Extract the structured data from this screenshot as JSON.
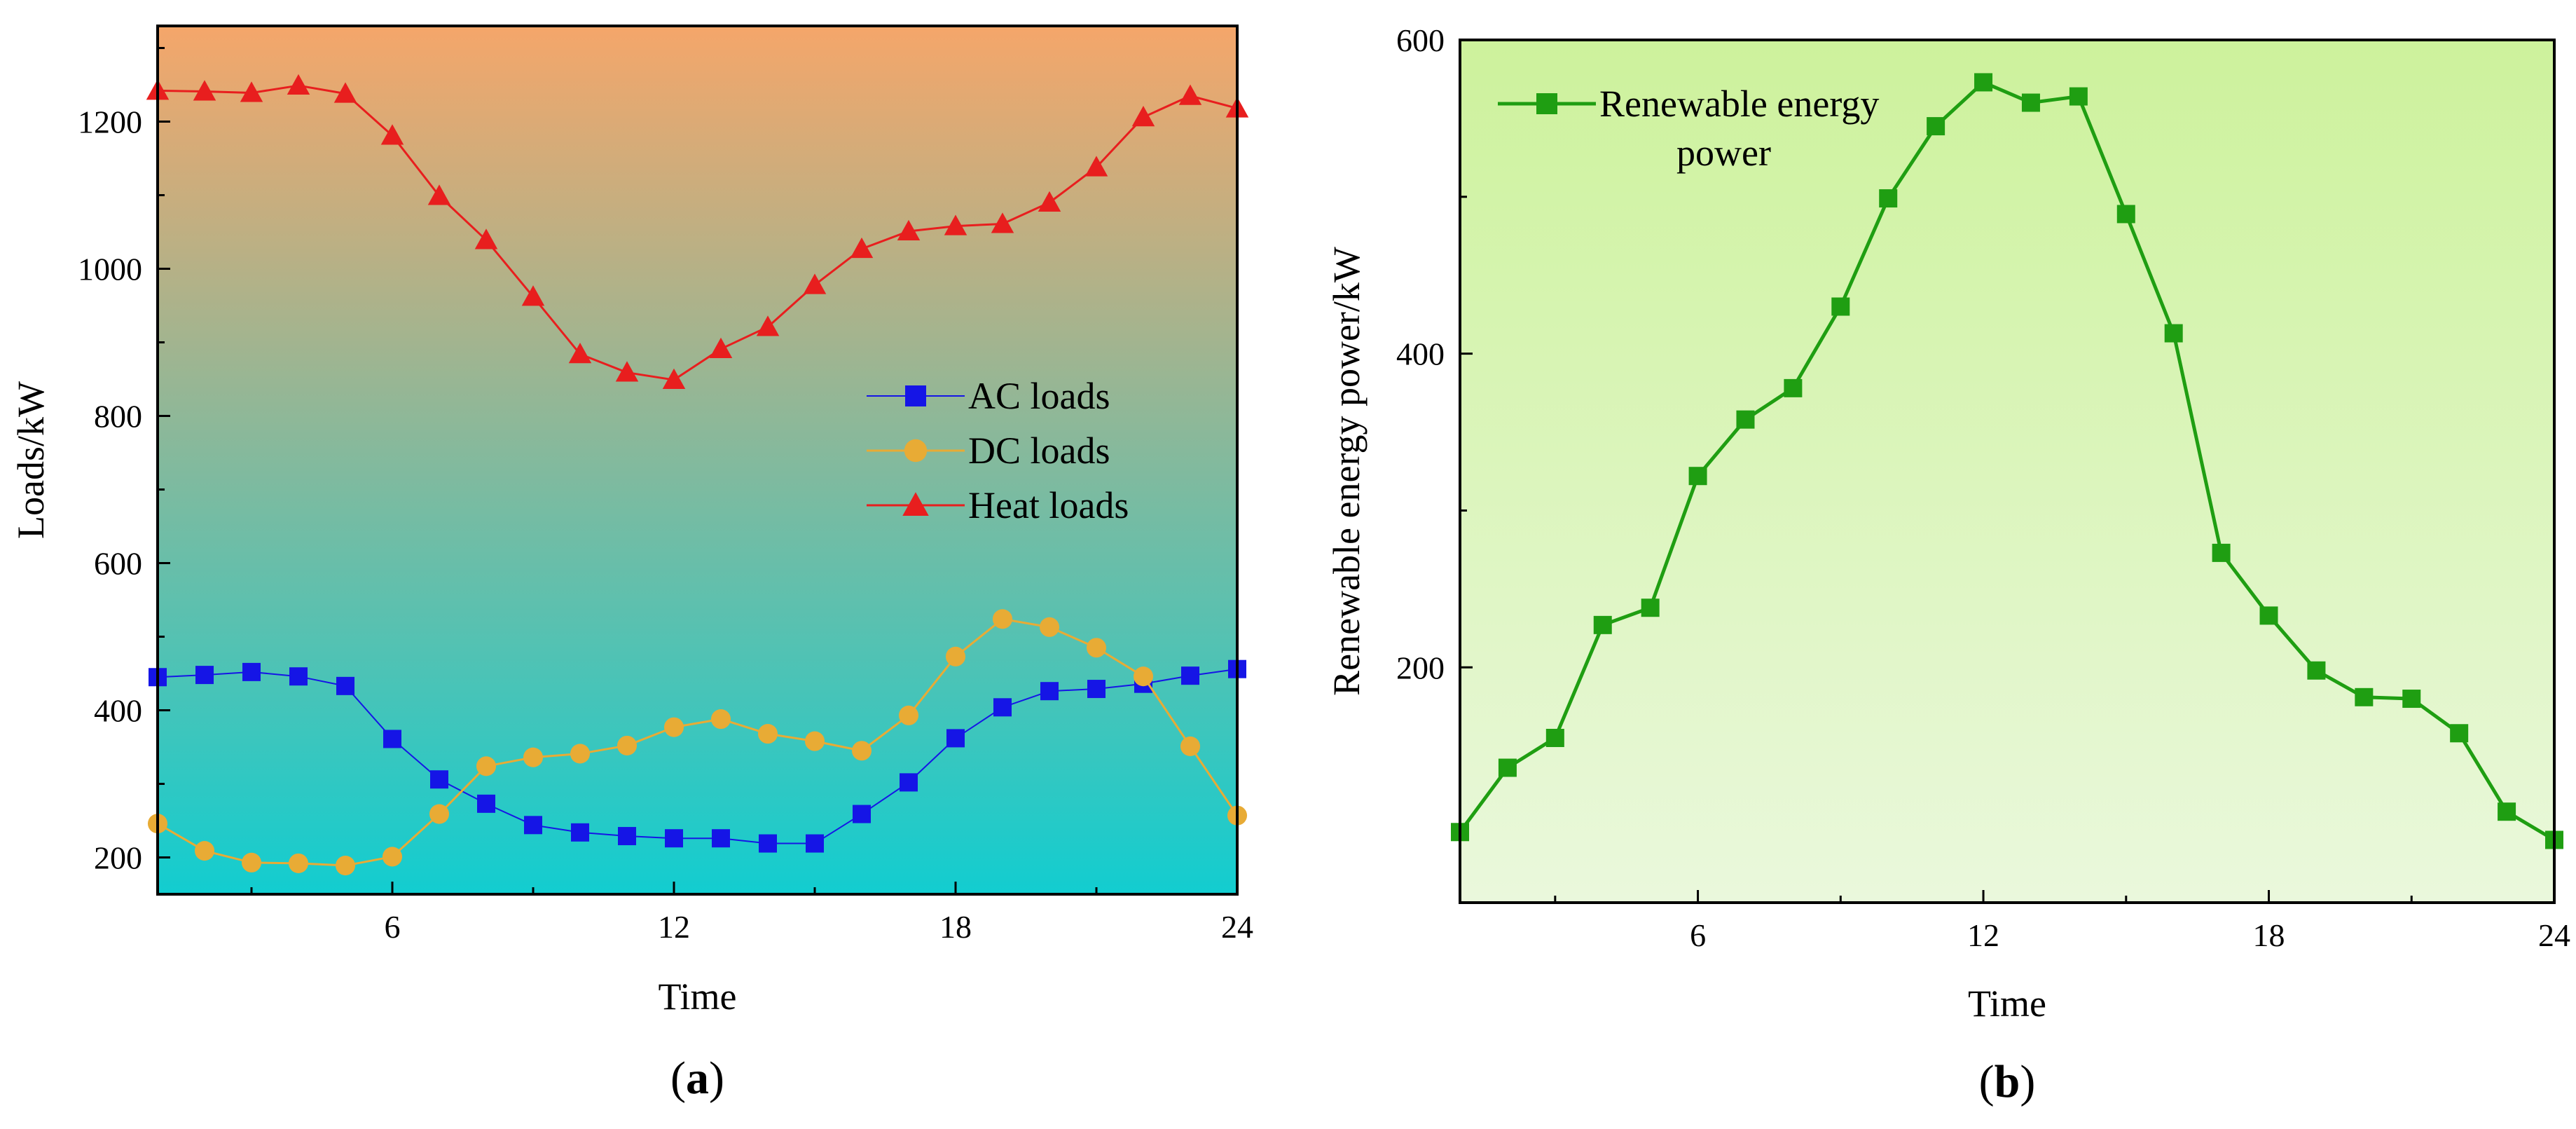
{
  "chart_data": [
    {
      "type": "line",
      "panel_label": "(a)",
      "xlabel": "Time",
      "ylabel": "Loads/kW",
      "xlim": [
        1,
        24
      ],
      "ylim": [
        150,
        1330
      ],
      "xticks": [
        6,
        12,
        18,
        24
      ],
      "yticks": [
        200,
        400,
        600,
        800,
        1000,
        1200
      ],
      "grid": false,
      "legend_position": "center-right",
      "background_gradient": [
        "#f5a66a",
        "#12cdd0"
      ],
      "x": [
        1,
        2,
        3,
        4,
        5,
        6,
        7,
        8,
        9,
        10,
        11,
        12,
        13,
        14,
        15,
        16,
        17,
        18,
        19,
        20,
        21,
        22,
        23,
        24
      ],
      "series": [
        {
          "name": "AC loads",
          "marker": "square",
          "color": "#1515e6",
          "values": [
            445,
            448,
            452,
            446,
            433,
            361,
            306,
            273,
            244,
            234,
            229,
            226,
            226,
            219,
            219,
            259,
            302,
            362,
            404,
            426,
            429,
            436,
            447,
            456
          ]
        },
        {
          "name": "DC loads",
          "marker": "circle",
          "color": "#e8ab35",
          "values": [
            246,
            209,
            193,
            192,
            189,
            201,
            259,
            324,
            336,
            341,
            352,
            377,
            388,
            368,
            358,
            345,
            393,
            473,
            524,
            513,
            485,
            446,
            351,
            257
          ]
        },
        {
          "name": "Heat loads",
          "marker": "triangle",
          "color": "#e81e1e",
          "values": [
            1242,
            1241,
            1239,
            1249,
            1238,
            1181,
            1099,
            1039,
            962,
            884,
            859,
            849,
            891,
            921,
            978,
            1027,
            1051,
            1058,
            1061,
            1090,
            1138,
            1206,
            1235,
            1218
          ]
        }
      ]
    },
    {
      "type": "line",
      "panel_label": "(b)",
      "xlabel": "Time",
      "ylabel": "Renewable energy power/kW",
      "xlim": [
        1,
        24
      ],
      "ylim": [
        50,
        600
      ],
      "xticks": [
        6,
        12,
        18,
        24
      ],
      "yticks": [
        200,
        400,
        600
      ],
      "grid": false,
      "legend_position": "top-left",
      "background_gradient": [
        "#cdf29c",
        "#eaf8dc"
      ],
      "x": [
        1,
        2,
        3,
        4,
        5,
        6,
        7,
        8,
        9,
        10,
        11,
        12,
        13,
        14,
        15,
        16,
        17,
        18,
        19,
        20,
        21,
        22,
        23,
        24
      ],
      "series": [
        {
          "name": "Renewable energy power",
          "legend_lines": [
            "Renewable energy",
            "power"
          ],
          "marker": "square",
          "color": "#1f9e12",
          "values": [
            95,
            136,
            155,
            227,
            238,
            322,
            358,
            378,
            430,
            499,
            545,
            573,
            560,
            564,
            489,
            413,
            273,
            233,
            198,
            181,
            180,
            158,
            108,
            90
          ]
        }
      ]
    }
  ]
}
